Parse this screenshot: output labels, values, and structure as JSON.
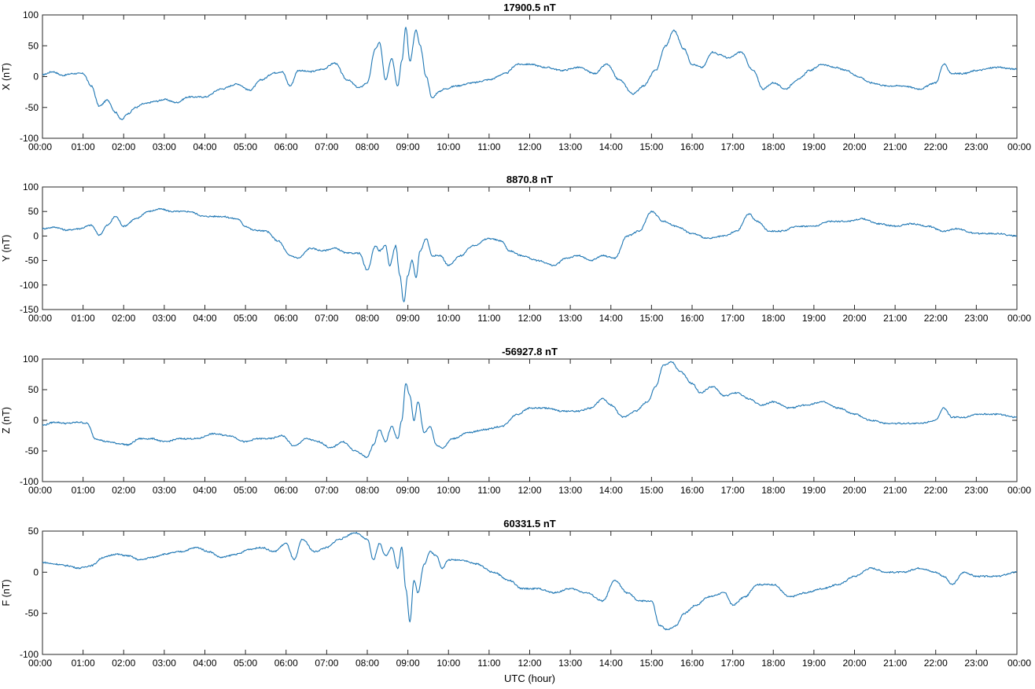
{
  "x_label": "UTC (hour)",
  "x_ticks": [
    "00:00",
    "01:00",
    "02:00",
    "03:00",
    "04:00",
    "05:00",
    "06:00",
    "07:00",
    "08:00",
    "09:00",
    "10:00",
    "11:00",
    "12:00",
    "13:00",
    "14:00",
    "15:00",
    "16:00",
    "17:00",
    "18:00",
    "19:00",
    "20:00",
    "21:00",
    "22:00",
    "23:00",
    "00:00"
  ],
  "line_color": "#1f77b4",
  "chart_data": [
    {
      "type": "line",
      "title": "17900.5 nT",
      "ylabel": "X (nT)",
      "xlim": [
        0,
        24
      ],
      "ylim": [
        -100,
        100
      ],
      "yticks": [
        -100,
        -50,
        0,
        50,
        100
      ],
      "grid": false,
      "x": [
        0,
        0.25,
        0.5,
        0.75,
        1.0,
        1.2,
        1.4,
        1.6,
        1.8,
        1.95,
        2.1,
        2.3,
        2.5,
        2.8,
        3.0,
        3.3,
        3.6,
        4.0,
        4.4,
        4.8,
        5.1,
        5.4,
        5.7,
        5.9,
        6.1,
        6.3,
        6.6,
        6.9,
        7.2,
        7.5,
        7.8,
        8.0,
        8.2,
        8.3,
        8.45,
        8.6,
        8.75,
        8.85,
        8.95,
        9.05,
        9.2,
        9.3,
        9.45,
        9.6,
        9.75,
        9.9,
        10.2,
        10.6,
        11.0,
        11.4,
        11.7,
        12.0,
        12.4,
        12.8,
        13.2,
        13.6,
        13.9,
        14.2,
        14.55,
        14.8,
        15.1,
        15.35,
        15.55,
        15.8,
        16.0,
        16.25,
        16.5,
        16.7,
        16.9,
        17.2,
        17.5,
        17.75,
        18.0,
        18.3,
        18.6,
        18.9,
        19.2,
        19.5,
        19.8,
        20.1,
        20.4,
        20.8,
        21.2,
        21.6,
        22.0,
        22.2,
        22.4,
        22.7,
        23.0,
        23.5,
        24.0
      ],
      "values": [
        3,
        8,
        2,
        5,
        5,
        -15,
        -48,
        -38,
        -58,
        -70,
        -60,
        -50,
        -44,
        -40,
        -37,
        -42,
        -33,
        -33,
        -20,
        -12,
        -22,
        -5,
        6,
        8,
        -15,
        10,
        8,
        12,
        22,
        -5,
        -18,
        -10,
        45,
        55,
        -5,
        30,
        -15,
        25,
        80,
        25,
        75,
        50,
        0,
        -35,
        -25,
        -20,
        -15,
        -10,
        -5,
        5,
        20,
        20,
        15,
        10,
        15,
        5,
        20,
        -5,
        -28,
        -15,
        10,
        50,
        75,
        45,
        20,
        15,
        40,
        35,
        30,
        40,
        10,
        -20,
        -10,
        -20,
        -5,
        10,
        20,
        15,
        10,
        0,
        -10,
        -15,
        -15,
        -20,
        -10,
        20,
        5,
        5,
        10,
        15,
        12
      ]
    },
    {
      "type": "line",
      "title": "8870.8 nT",
      "ylabel": "Y (nT)",
      "xlim": [
        0,
        24
      ],
      "ylim": [
        -150,
        100
      ],
      "yticks": [
        -150,
        -100,
        -50,
        0,
        50,
        100
      ],
      "grid": false,
      "x": [
        0,
        0.3,
        0.6,
        0.9,
        1.2,
        1.4,
        1.6,
        1.8,
        2.0,
        2.3,
        2.6,
        2.9,
        3.2,
        3.6,
        4.0,
        4.4,
        4.8,
        5.0,
        5.2,
        5.5,
        5.8,
        6.1,
        6.3,
        6.6,
        6.9,
        7.2,
        7.5,
        7.8,
        8.0,
        8.2,
        8.3,
        8.45,
        8.55,
        8.7,
        8.8,
        8.9,
        9.0,
        9.1,
        9.2,
        9.3,
        9.45,
        9.6,
        9.8,
        10.0,
        10.3,
        10.6,
        11.0,
        11.3,
        11.5,
        11.8,
        12.2,
        12.6,
        12.9,
        13.2,
        13.5,
        13.8,
        14.1,
        14.4,
        14.7,
        15.0,
        15.3,
        15.6,
        16.0,
        16.4,
        16.8,
        17.1,
        17.4,
        17.6,
        17.9,
        18.2,
        18.6,
        19.0,
        19.4,
        19.8,
        20.2,
        20.6,
        21.0,
        21.4,
        21.8,
        22.2,
        22.5,
        23.0,
        23.5,
        24.0
      ],
      "values": [
        15,
        18,
        12,
        15,
        22,
        2,
        22,
        40,
        20,
        35,
        50,
        55,
        50,
        50,
        40,
        40,
        35,
        20,
        12,
        10,
        -10,
        -40,
        -45,
        -25,
        -30,
        -25,
        -35,
        -35,
        -70,
        -20,
        -30,
        -20,
        -60,
        -20,
        -80,
        -135,
        -80,
        -50,
        -85,
        -30,
        -5,
        -40,
        -40,
        -60,
        -40,
        -20,
        -5,
        -10,
        -30,
        -40,
        -50,
        -60,
        -45,
        -40,
        -50,
        -40,
        -45,
        0,
        10,
        50,
        30,
        20,
        5,
        -5,
        0,
        10,
        45,
        30,
        10,
        10,
        20,
        20,
        30,
        30,
        35,
        25,
        20,
        25,
        20,
        10,
        15,
        5,
        5,
        0
      ]
    },
    {
      "type": "line",
      "title": "-56927.8 nT",
      "ylabel": "Z (nT)",
      "xlim": [
        0,
        24
      ],
      "ylim": [
        -100,
        100
      ],
      "yticks": [
        -100,
        -50,
        0,
        50,
        100
      ],
      "grid": false,
      "x": [
        0,
        0.3,
        0.6,
        0.9,
        1.1,
        1.3,
        1.6,
        1.9,
        2.1,
        2.4,
        2.7,
        3.0,
        3.4,
        3.8,
        4.2,
        4.6,
        5.0,
        5.3,
        5.6,
        5.9,
        6.2,
        6.5,
        6.8,
        7.1,
        7.4,
        7.7,
        8.0,
        8.15,
        8.3,
        8.45,
        8.6,
        8.75,
        8.85,
        8.95,
        9.05,
        9.15,
        9.25,
        9.4,
        9.55,
        9.7,
        9.85,
        10.1,
        10.5,
        10.9,
        11.3,
        11.7,
        12.0,
        12.4,
        12.8,
        13.2,
        13.5,
        13.8,
        14.0,
        14.3,
        14.6,
        14.9,
        15.1,
        15.3,
        15.5,
        15.7,
        16.0,
        16.2,
        16.5,
        16.8,
        17.1,
        17.4,
        17.7,
        18.0,
        18.4,
        18.8,
        19.2,
        19.6,
        20.0,
        20.4,
        20.8,
        21.2,
        21.6,
        22.0,
        22.2,
        22.4,
        22.7,
        23.0,
        23.5,
        24.0
      ],
      "values": [
        -8,
        -3,
        -5,
        -3,
        -5,
        -30,
        -35,
        -38,
        -40,
        -30,
        -30,
        -35,
        -30,
        -30,
        -22,
        -25,
        -35,
        -30,
        -30,
        -25,
        -42,
        -30,
        -35,
        -45,
        -35,
        -50,
        -60,
        -40,
        -15,
        -35,
        -10,
        -30,
        0,
        60,
        40,
        0,
        30,
        -20,
        -10,
        -40,
        -45,
        -30,
        -20,
        -15,
        -10,
        10,
        20,
        20,
        15,
        15,
        20,
        35,
        25,
        5,
        15,
        30,
        55,
        90,
        95,
        80,
        60,
        45,
        55,
        40,
        45,
        35,
        25,
        30,
        20,
        25,
        30,
        20,
        10,
        0,
        -5,
        -5,
        -5,
        0,
        20,
        5,
        5,
        10,
        10,
        5
      ]
    },
    {
      "type": "line",
      "title": "60331.5 nT",
      "ylabel": "F (nT)",
      "xlim": [
        0,
        24
      ],
      "ylim": [
        -100,
        50
      ],
      "yticks": [
        -100,
        -50,
        0,
        50
      ],
      "grid": false,
      "x": [
        0,
        0.3,
        0.6,
        0.9,
        1.2,
        1.5,
        1.8,
        2.1,
        2.4,
        2.7,
        3.0,
        3.4,
        3.8,
        4.1,
        4.4,
        4.8,
        5.1,
        5.4,
        5.7,
        6.0,
        6.2,
        6.4,
        6.7,
        7.0,
        7.3,
        7.7,
        8.0,
        8.15,
        8.3,
        8.45,
        8.6,
        8.75,
        8.85,
        8.95,
        9.05,
        9.15,
        9.25,
        9.4,
        9.55,
        9.7,
        9.85,
        10.0,
        10.3,
        10.7,
        11.1,
        11.5,
        11.8,
        12.2,
        12.6,
        13.0,
        13.4,
        13.8,
        14.1,
        14.4,
        14.7,
        15.0,
        15.2,
        15.4,
        15.6,
        15.8,
        16.1,
        16.4,
        16.8,
        17.0,
        17.3,
        17.6,
        18.0,
        18.4,
        18.8,
        19.2,
        19.6,
        20.0,
        20.4,
        20.8,
        21.2,
        21.6,
        22.0,
        22.2,
        22.4,
        22.7,
        23.0,
        23.5,
        24.0
      ],
      "values": [
        12,
        10,
        8,
        5,
        8,
        18,
        22,
        20,
        15,
        18,
        22,
        25,
        30,
        25,
        18,
        22,
        28,
        30,
        25,
        35,
        15,
        40,
        25,
        30,
        40,
        48,
        40,
        15,
        35,
        20,
        30,
        5,
        30,
        -20,
        -60,
        -10,
        -25,
        10,
        25,
        20,
        5,
        15,
        15,
        10,
        0,
        -10,
        -20,
        -20,
        -25,
        -20,
        -25,
        -35,
        -10,
        -25,
        -35,
        -35,
        -65,
        -70,
        -65,
        -50,
        -40,
        -30,
        -25,
        -40,
        -30,
        -15,
        -15,
        -30,
        -25,
        -20,
        -15,
        -5,
        5,
        0,
        0,
        5,
        0,
        -5,
        -15,
        0,
        -5,
        -5,
        0
      ]
    }
  ]
}
